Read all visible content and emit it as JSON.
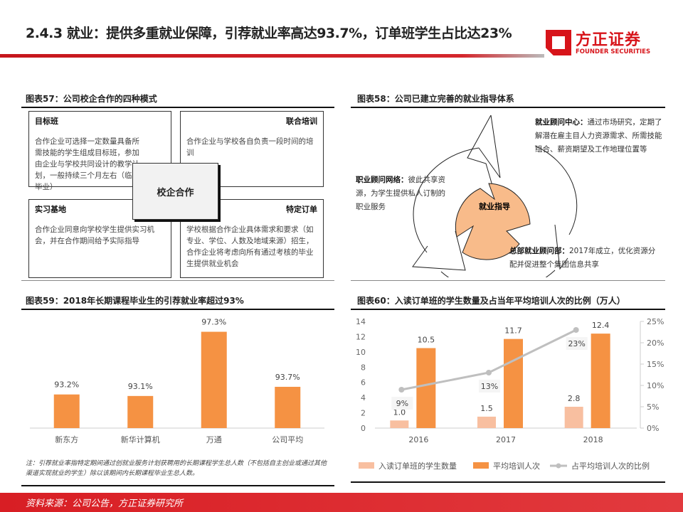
{
  "header": {
    "title": "2.4.3 就业：提供多重就业保障，引荐就业率高达93.7%，订单班学生占比达23%",
    "logo_cn": "方正证券",
    "logo_en": "FOUNDER SECURITIES",
    "accent": "#d7141a"
  },
  "fig57": {
    "title": "图表57：公司校企合作的四种模式",
    "center": "校企合作",
    "boxes": [
      {
        "head": "目标班",
        "text": "合作企业可选择一定数量具备所需技能的学生组成目标班，参加由企业与学校共同设计的教学计划，一般持续三个月左右（临近毕业）"
      },
      {
        "head": "联合培训",
        "text": "合作企业与学校各自负责一段时间的培训"
      },
      {
        "head": "实习基地",
        "text": "合作企业同意向学校学生提供实习机会，并在合作期间给予实际指导"
      },
      {
        "head": "特定订单",
        "text": "学校根据合作企业具体需求和要求（如专业、学位、人数及地域来源）招生，合作企业将考虑向所有通过考核的毕业生提供就业机会"
      }
    ]
  },
  "fig58": {
    "title": "图表58：公司已建立完善的就业指导体系",
    "center": "就业指导",
    "items": [
      {
        "head": "就业顾问中心：",
        "text": "通过市场研究，定期了解潜在雇主目人力资源需求、所需技能组合、薪资期望及工作地理位置等"
      },
      {
        "head": "职业顾问网络：",
        "text": "彼此共享资源，为学生提供私人订制的职业服务"
      },
      {
        "head": "总部就业顾问部：",
        "text": "2017年成立，优化资源分配并促进整个集团信息共享"
      }
    ],
    "fill": "#f8bb8a"
  },
  "chart_data": [
    {
      "type": "bar",
      "title": "图表59：2018年长期课程毕业生的引荐就业率超过93%",
      "categories": [
        "新东方",
        "新华计算机",
        "万通",
        "公司平均"
      ],
      "values": [
        93.2,
        93.1,
        97.3,
        93.7
      ],
      "labels": [
        "93.2%",
        "93.1%",
        "97.3%",
        "93.7%"
      ],
      "ylim": [
        91,
        98
      ],
      "color": "#f59243",
      "grid": false
    },
    {
      "type": "bar+line",
      "title": "图表60：入读订单班的学生数量及占当年平均培训人次的比例（万人）",
      "categories": [
        "2016",
        "2017",
        "2018"
      ],
      "series": [
        {
          "name": "入读订单班的学生数量",
          "type": "bar",
          "axis": "left",
          "values": [
            1.0,
            1.5,
            2.8
          ],
          "labels": [
            "1.0",
            "1.5",
            "2.8"
          ],
          "color": "#f8bfa0"
        },
        {
          "name": "平均培训人次",
          "type": "bar",
          "axis": "left",
          "values": [
            10.5,
            11.7,
            12.4
          ],
          "labels": [
            "10.5",
            "11.7",
            "12.4"
          ],
          "color": "#f59243"
        },
        {
          "name": "占平均培训人次的比例",
          "type": "line",
          "axis": "right",
          "values": [
            9,
            13,
            23
          ],
          "labels": [
            "9%",
            "13%",
            "23%"
          ],
          "color": "#bfbfbf"
        }
      ],
      "yticks_left": [
        "0",
        "2",
        "4",
        "6",
        "8",
        "10",
        "12",
        "14"
      ],
      "yticks_right": [
        "0%",
        "5%",
        "10%",
        "15%",
        "20%",
        "25%"
      ],
      "ylim_left": [
        0,
        14
      ],
      "ylim_right": [
        0,
        25
      ],
      "legend": "bottom",
      "grid": false
    }
  ],
  "note": "注：引荐就业率指特定期间通过创就业服务计划获聘用的长期课程学生总人数（不包括自主创业或通过其他渠道实现就业的学生）除以该期间内长期课程毕业生总人数。",
  "footer": "资料来源：公司公告，方正证券研究所"
}
